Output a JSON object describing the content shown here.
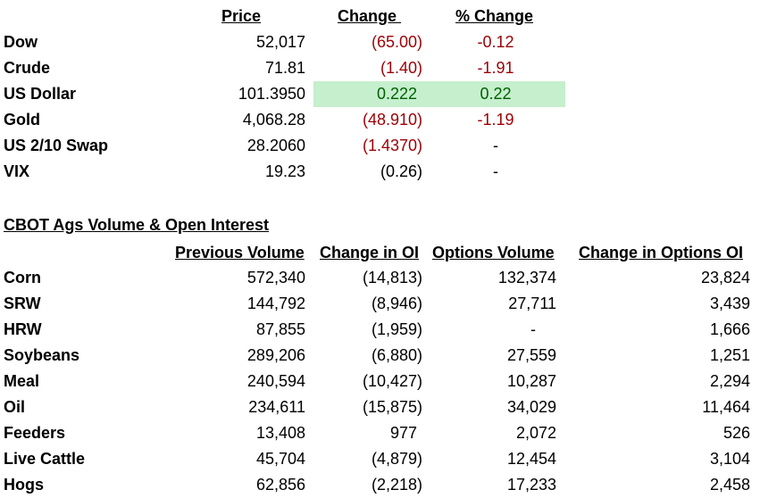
{
  "market": {
    "headers": {
      "price": "Price",
      "change": "Change ",
      "pct_change": "% Change"
    },
    "rows": [
      {
        "name": "Dow",
        "price": "52,017",
        "change": "(65.00)",
        "pct": "-0.12",
        "trend": "neg"
      },
      {
        "name": "Crude",
        "price": "71.81",
        "change": "(1.40)",
        "pct": "-1.91",
        "trend": "neg"
      },
      {
        "name": "US Dollar",
        "price": "101.3950",
        "change": "0.222",
        "pct": "0.22",
        "trend": "pos"
      },
      {
        "name": "Gold",
        "price": "4,068.28",
        "change": "(48.910)",
        "pct": "-1.19",
        "trend": "neg"
      },
      {
        "name": "US 2/10 Swap",
        "price": "28.2060",
        "change": "(1.4370)",
        "pct": "-",
        "trend": "neg"
      },
      {
        "name": "VIX",
        "price": "19.23",
        "change": "(0.26)",
        "pct": "-",
        "trend": "none"
      }
    ],
    "colors": {
      "negative": "#9c0006",
      "positive": "#006100",
      "highlight_fill": "#c6efce"
    }
  },
  "cbot": {
    "title": "CBOT Ags Volume & Open Interest",
    "headers": {
      "prev_volume": "Previous Volume",
      "change_oi": "Change in OI",
      "options_volume": "Options Volume",
      "change_options_oi": "Change in Options OI"
    },
    "rows": [
      {
        "name": "Corn",
        "prev_volume": "572,340",
        "change_oi": "(14,813)",
        "options_volume": "132,374",
        "change_options_oi": "23,824"
      },
      {
        "name": "SRW",
        "prev_volume": "144,792",
        "change_oi": "(8,946)",
        "options_volume": "27,711",
        "change_options_oi": "3,439"
      },
      {
        "name": "HRW",
        "prev_volume": "87,855",
        "change_oi": "(1,959)",
        "options_volume": "-",
        "change_options_oi": "1,666"
      },
      {
        "name": "Soybeans",
        "prev_volume": "289,206",
        "change_oi": "(6,880)",
        "options_volume": "27,559",
        "change_options_oi": "1,251"
      },
      {
        "name": "Meal",
        "prev_volume": "240,594",
        "change_oi": "(10,427)",
        "options_volume": "10,287",
        "change_options_oi": "2,294"
      },
      {
        "name": "Oil",
        "prev_volume": "234,611",
        "change_oi": "(15,875)",
        "options_volume": "34,029",
        "change_options_oi": "11,464"
      },
      {
        "name": "Feeders",
        "prev_volume": "13,408",
        "change_oi": "977",
        "options_volume": "2,072",
        "change_options_oi": "526"
      },
      {
        "name": "Live Cattle",
        "prev_volume": "45,704",
        "change_oi": "(4,879)",
        "options_volume": "12,454",
        "change_options_oi": "3,104"
      },
      {
        "name": "Hogs",
        "prev_volume": "62,856",
        "change_oi": "(2,218)",
        "options_volume": "17,233",
        "change_options_oi": "2,458"
      }
    ]
  }
}
